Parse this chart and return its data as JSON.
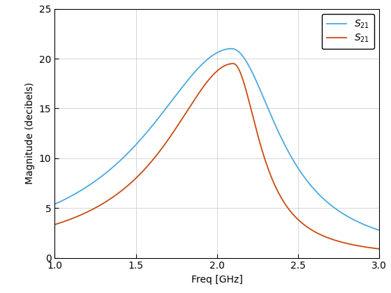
{
  "title": "",
  "xlabel": "Freq [GHz]",
  "ylabel": "Magnitude (decibels)",
  "xlim": [
    1,
    3
  ],
  "ylim": [
    0,
    25
  ],
  "xticks": [
    1.0,
    1.5,
    2.0,
    2.5,
    3.0
  ],
  "yticks": [
    0,
    5,
    10,
    15,
    20,
    25
  ],
  "line1_color": "#4CA8E0",
  "line2_color": "#C84B11",
  "legend_labels": [
    "$S_{21}$",
    "$S_{21}$"
  ],
  "background_color": "#ffffff",
  "grid_color": "#d0d0d0",
  "linewidth": 1.3,
  "line1_f0": 2.09,
  "line1_A": 21.0,
  "line1_gamma_l": 0.64,
  "line1_gamma_r": 0.355,
  "line2_f0": 2.1,
  "line2_A": 19.5,
  "line2_gamma_l": 0.5,
  "line2_gamma_r": 0.198
}
